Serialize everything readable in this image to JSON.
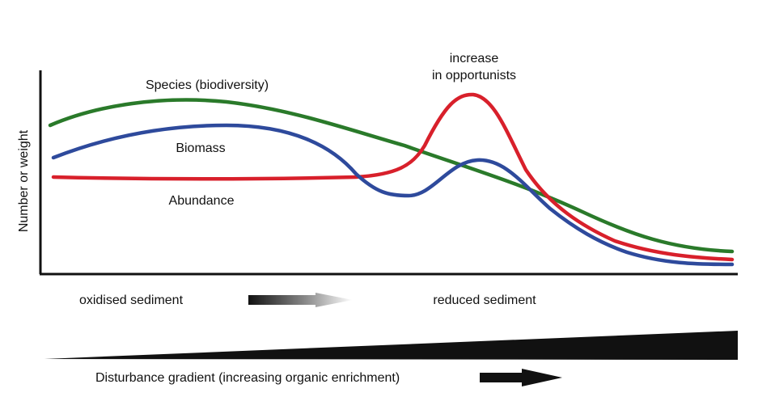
{
  "diagram": {
    "y_axis_label": "Number or weight",
    "curves": {
      "species": {
        "label": "Species (biodiversity)",
        "color": "#2a7a2a"
      },
      "biomass": {
        "label": "Biomass",
        "color": "#2e4a9c"
      },
      "abundance": {
        "label": "Abundance",
        "color": "#d8202b"
      }
    },
    "annotation": {
      "line1": "increase",
      "line2": "in opportunists"
    },
    "sediment": {
      "left": "oxidised sediment",
      "right": "reduced sediment"
    },
    "gradient_label": "Disturbance gradient (increasing organic enrichment)",
    "colors": {
      "axis": "#111111",
      "wedge": "#111111",
      "arrow": "#111111"
    }
  }
}
